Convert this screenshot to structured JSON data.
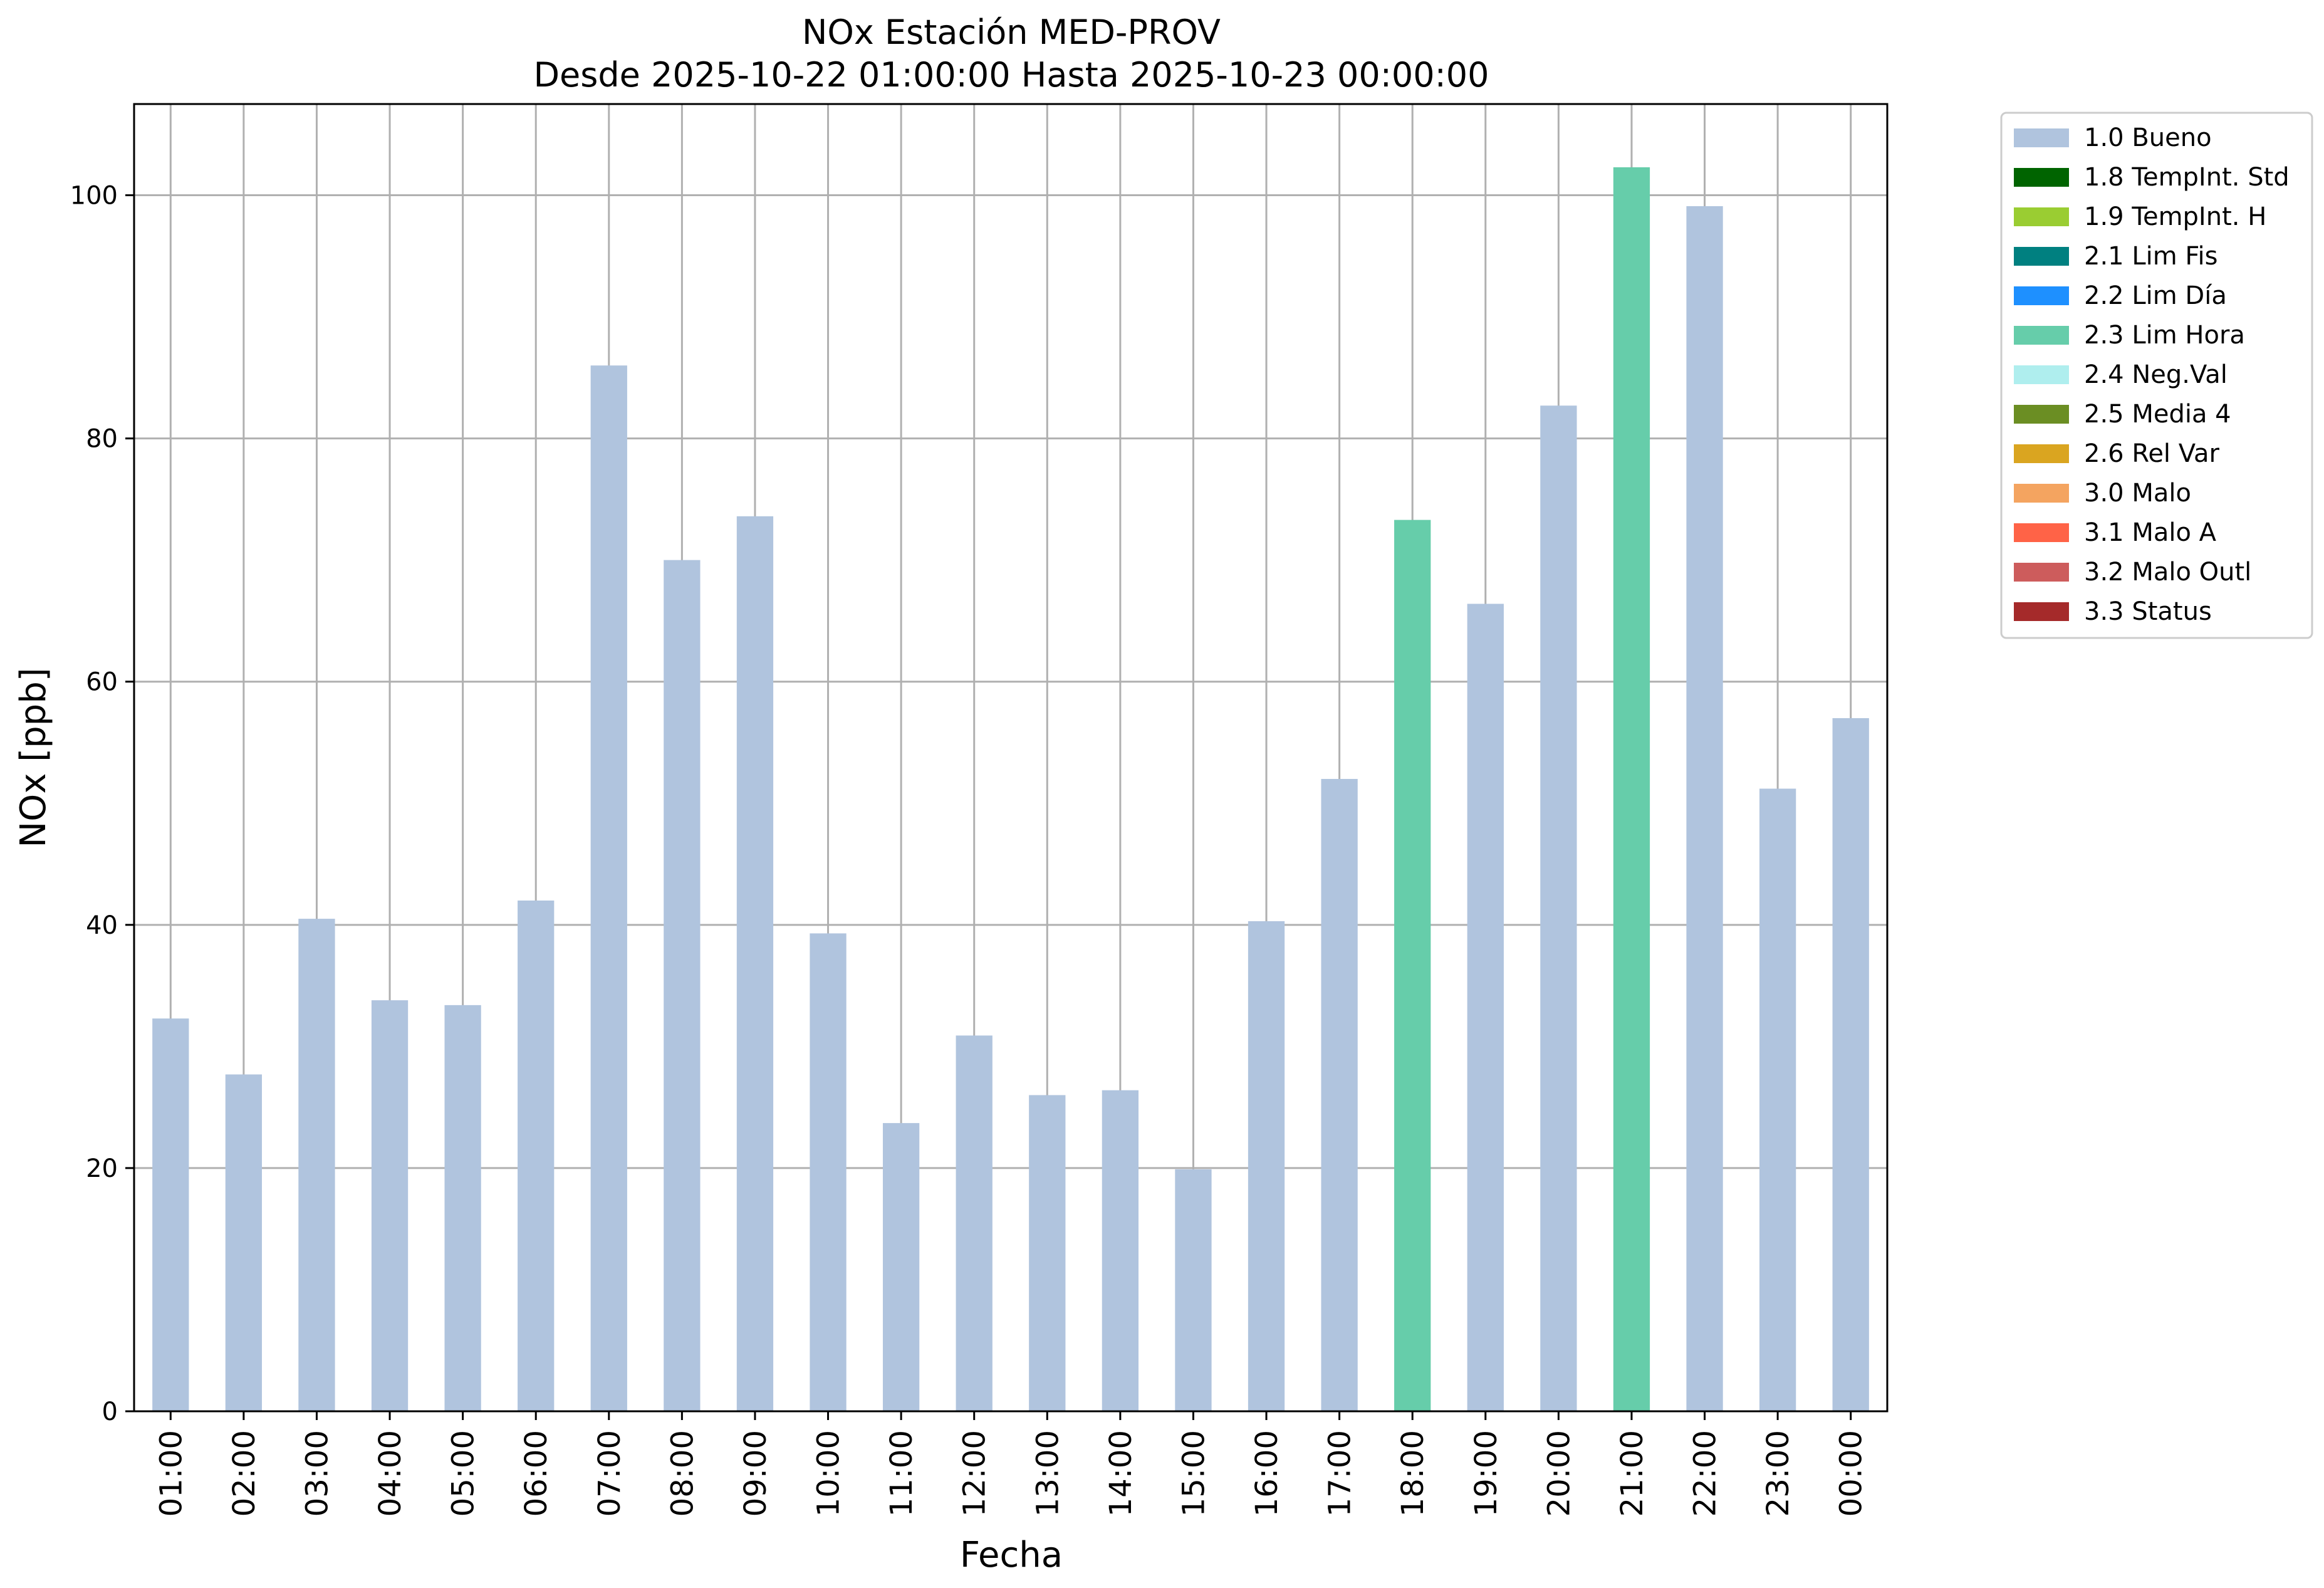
{
  "chart_data": {
    "type": "bar",
    "title": "NOx Estación MED-PROV",
    "subtitle": "Desde 2025-10-22 01:00:00 Hasta 2025-10-23 00:00:00",
    "xlabel": "Fecha",
    "ylabel": "NOx [ppb]",
    "ylim": [
      0,
      107.5
    ],
    "yticks": [
      0,
      20,
      40,
      60,
      80,
      100
    ],
    "grid": true,
    "legend_position": "outside-top-right",
    "categories": [
      "01:00",
      "02:00",
      "03:00",
      "04:00",
      "05:00",
      "06:00",
      "07:00",
      "08:00",
      "09:00",
      "10:00",
      "11:00",
      "12:00",
      "13:00",
      "14:00",
      "15:00",
      "16:00",
      "17:00",
      "18:00",
      "19:00",
      "20:00",
      "21:00",
      "22:00",
      "23:00",
      "00:00"
    ],
    "values": [
      32.3,
      27.7,
      40.5,
      33.8,
      33.4,
      42.0,
      86.0,
      70.0,
      73.6,
      39.3,
      23.7,
      30.9,
      26.0,
      26.4,
      19.9,
      40.3,
      52.0,
      73.3,
      66.4,
      82.7,
      102.3,
      99.1,
      51.2,
      57.0
    ],
    "bar_flags": [
      "1.0 Bueno",
      "1.0 Bueno",
      "1.0 Bueno",
      "1.0 Bueno",
      "1.0 Bueno",
      "1.0 Bueno",
      "1.0 Bueno",
      "1.0 Bueno",
      "1.0 Bueno",
      "1.0 Bueno",
      "1.0 Bueno",
      "1.0 Bueno",
      "1.0 Bueno",
      "1.0 Bueno",
      "1.0 Bueno",
      "1.0 Bueno",
      "1.0 Bueno",
      "2.3 Lim Hora",
      "1.0 Bueno",
      "1.0 Bueno",
      "2.3 Lim Hora",
      "1.0 Bueno",
      "1.0 Bueno",
      "1.0 Bueno"
    ],
    "legend": [
      {
        "name": "1.0 Bueno",
        "color": "#b0c4de"
      },
      {
        "name": "1.8 TempInt. Std",
        "color": "#006400"
      },
      {
        "name": "1.9 TempInt. H",
        "color": "#9acd32"
      },
      {
        "name": "2.1 Lim Fis",
        "color": "#008080"
      },
      {
        "name": "2.2 Lim Día",
        "color": "#1e90ff"
      },
      {
        "name": "2.3 Lim Hora",
        "color": "#66cdaa"
      },
      {
        "name": "2.4 Neg.Val",
        "color": "#afeeee"
      },
      {
        "name": "2.5 Media 4",
        "color": "#6b8e23"
      },
      {
        "name": "2.6 Rel Var",
        "color": "#daa520"
      },
      {
        "name": "3.0 Malo",
        "color": "#f4a460"
      },
      {
        "name": "3.1 Malo A",
        "color": "#ff6347"
      },
      {
        "name": "3.2 Malo Outl",
        "color": "#cd5c5c"
      },
      {
        "name": "3.3 Status",
        "color": "#a52a2a"
      }
    ]
  }
}
